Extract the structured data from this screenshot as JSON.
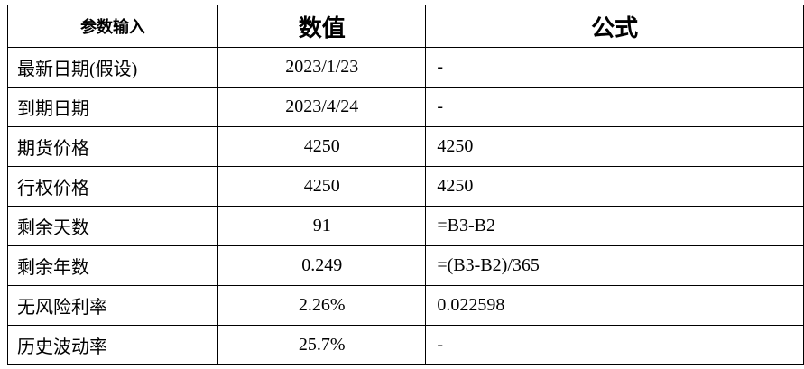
{
  "table": {
    "header": [
      "参数输入",
      "数值",
      "公式"
    ],
    "rows": [
      [
        "最新日期(假设)",
        "2023/1/23",
        "-"
      ],
      [
        "到期日期",
        "2023/4/24",
        "-"
      ],
      [
        "期货价格",
        "4250",
        "4250"
      ],
      [
        "行权价格",
        "4250",
        "4250"
      ],
      [
        "剩余天数",
        "91",
        "=B3-B2"
      ],
      [
        "剩余年数",
        "0.249",
        "=(B3-B2)/365"
      ],
      [
        "无风险利率",
        "2.26%",
        "0.022598"
      ],
      [
        "历史波动率",
        "25.7%",
        "-"
      ]
    ]
  }
}
